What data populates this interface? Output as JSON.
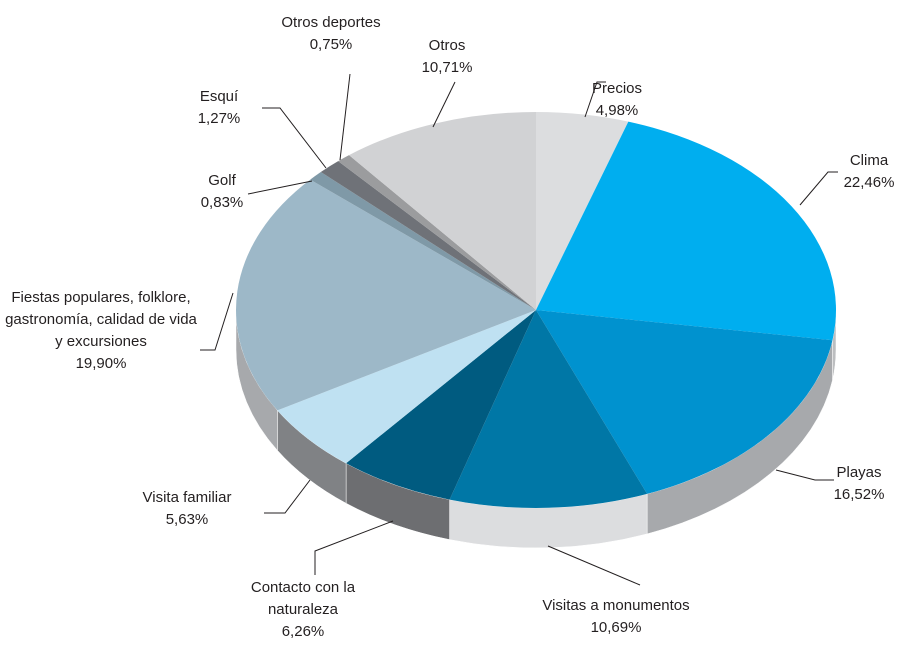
{
  "chart_data": {
    "type": "pie",
    "categories": [
      "Precios",
      "Clima",
      "Playas",
      "Visitas a monumentos",
      "Contacto con la naturaleza",
      "Visita familiar",
      "Fiestas populares, folklore, gastronomía, calidad de vida y excursiones",
      "Golf",
      "Esquí",
      "Otros deportes",
      "Otros"
    ],
    "values": [
      4.98,
      22.46,
      16.52,
      10.69,
      6.26,
      5.63,
      19.9,
      0.83,
      1.27,
      0.75,
      10.71
    ],
    "value_labels": [
      "4,98%",
      "22,46%",
      "16,52%",
      "10,69%",
      "6,26%",
      "5,63%",
      "19,90%",
      "0,83%",
      "1,27%",
      "0,75%",
      "10,71%"
    ],
    "colors": [
      "#dcdddf",
      "#00aeef",
      "#0092cf",
      "#0077a6",
      "#005b80",
      "#bfe1f2",
      "#9db8c8",
      "#7f99a7",
      "#6f7278",
      "#9b9c9e",
      "#d1d2d4"
    ],
    "side_colors": [
      "#bcbec0",
      "#bcbec0",
      "#a7a9ac",
      "#dcdddf",
      "#6d6e71",
      "#808285",
      "#a7a9ac",
      "#939598",
      "#58595b",
      "#808285",
      "#bcbec0"
    ]
  }
}
